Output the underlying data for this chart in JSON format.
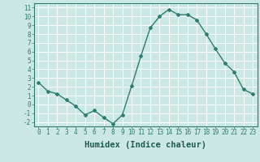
{
  "x": [
    0,
    1,
    2,
    3,
    4,
    5,
    6,
    7,
    8,
    9,
    10,
    11,
    12,
    13,
    14,
    15,
    16,
    17,
    18,
    19,
    20,
    21,
    22,
    23
  ],
  "y": [
    2.5,
    1.5,
    1.2,
    0.5,
    -0.2,
    -1.2,
    -0.7,
    -1.5,
    -2.2,
    -1.2,
    2.1,
    5.5,
    8.7,
    10.0,
    10.8,
    10.2,
    10.2,
    9.6,
    8.0,
    6.3,
    4.7,
    3.7,
    1.7,
    1.2
  ],
  "line_color": "#2e7d6e",
  "marker": "D",
  "marker_size": 2.0,
  "bg_color": "#cce8e4",
  "grid_color": "#ffffff",
  "xlabel": "Humidex (Indice chaleur)",
  "ylim": [
    -2.5,
    11.5
  ],
  "xlim": [
    -0.5,
    23.5
  ],
  "yticks": [
    -2,
    -1,
    0,
    1,
    2,
    3,
    4,
    5,
    6,
    7,
    8,
    9,
    10,
    11
  ],
  "xticks": [
    0,
    1,
    2,
    3,
    4,
    5,
    6,
    7,
    8,
    9,
    10,
    11,
    12,
    13,
    14,
    15,
    16,
    17,
    18,
    19,
    20,
    21,
    22,
    23
  ],
  "tick_label_fontsize": 5.5,
  "xlabel_fontsize": 7.5,
  "line_width": 1.0
}
